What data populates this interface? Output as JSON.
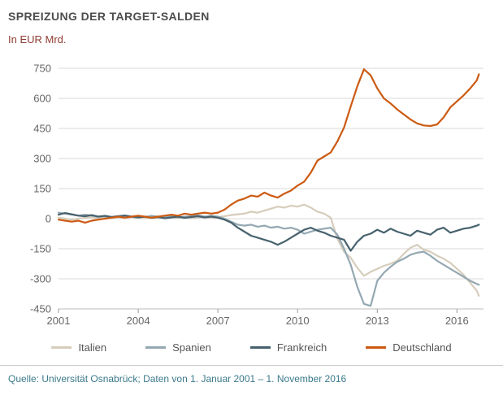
{
  "header": {
    "title": "SPREIZUNG DER TARGET-SALDEN",
    "subtitle": "In EUR Mrd."
  },
  "footer": {
    "source": "Quelle: Universität Osnabrück; Daten von 1. Januar 2001 – 1. November 2016"
  },
  "colors": {
    "title": "#4d4d4d",
    "subtitle": "#8e3b32",
    "axis_text": "#666666",
    "grid": "#d9d9d9",
    "axis_line": "#bbbbbb",
    "tick": "#999999",
    "source": "#3b7a8b",
    "background": "#ffffff"
  },
  "chart_data": {
    "type": "line",
    "title": "SPREIZUNG DER TARGET-SALDEN",
    "subtitle": "In EUR Mrd.",
    "xlabel": "",
    "ylabel": "EUR Mrd.",
    "xlim": [
      2001,
      2017
    ],
    "ylim": [
      -450,
      750
    ],
    "yticks": [
      -450,
      -300,
      -150,
      0,
      150,
      300,
      450,
      600,
      750
    ],
    "xticks": [
      2001,
      2004,
      2007,
      2010,
      2013,
      2016
    ],
    "grid": true,
    "legend_position": "bottom",
    "x": [
      2001,
      2001.25,
      2001.5,
      2001.75,
      2002,
      2002.25,
      2002.5,
      2002.75,
      2003,
      2003.25,
      2003.5,
      2003.75,
      2004,
      2004.25,
      2004.5,
      2004.75,
      2005,
      2005.25,
      2005.5,
      2005.75,
      2006,
      2006.25,
      2006.5,
      2006.75,
      2007,
      2007.25,
      2007.5,
      2007.75,
      2008,
      2008.25,
      2008.5,
      2008.75,
      2009,
      2009.25,
      2009.5,
      2009.75,
      2010,
      2010.25,
      2010.5,
      2010.75,
      2011,
      2011.25,
      2011.5,
      2011.75,
      2012,
      2012.25,
      2012.5,
      2012.75,
      2013,
      2013.25,
      2013.5,
      2013.75,
      2014,
      2014.25,
      2014.5,
      2014.75,
      2015,
      2015.25,
      2015.5,
      2015.75,
      2016,
      2016.25,
      2016.5,
      2016.75,
      2016.83
    ],
    "series": [
      {
        "name": "Italien",
        "color": "#d6cdbb",
        "values": [
          5,
          0,
          -5,
          0,
          5,
          8,
          3,
          6,
          2,
          6,
          4,
          8,
          5,
          2,
          6,
          3,
          5,
          8,
          4,
          7,
          3,
          6,
          9,
          5,
          8,
          12,
          18,
          22,
          25,
          35,
          30,
          40,
          50,
          60,
          55,
          65,
          60,
          70,
          55,
          35,
          25,
          5,
          -100,
          -165,
          -195,
          -245,
          -285,
          -265,
          -250,
          -235,
          -225,
          -210,
          -175,
          -145,
          -130,
          -155,
          -165,
          -185,
          -200,
          -220,
          -250,
          -280,
          -320,
          -360,
          -385
        ]
      },
      {
        "name": "Spanien",
        "color": "#94a8b2",
        "values": [
          30,
          25,
          20,
          15,
          20,
          15,
          10,
          12,
          8,
          12,
          6,
          10,
          12,
          8,
          14,
          10,
          8,
          12,
          6,
          10,
          12,
          16,
          10,
          14,
          10,
          0,
          -15,
          -30,
          -35,
          -30,
          -40,
          -35,
          -45,
          -40,
          -50,
          -45,
          -55,
          -75,
          -65,
          -55,
          -50,
          -45,
          -80,
          -150,
          -230,
          -340,
          -425,
          -435,
          -310,
          -270,
          -240,
          -215,
          -200,
          -180,
          -170,
          -165,
          -185,
          -210,
          -230,
          -250,
          -270,
          -290,
          -310,
          -325,
          -330
        ]
      },
      {
        "name": "Frankreich",
        "color": "#47626e",
        "values": [
          20,
          28,
          22,
          15,
          12,
          18,
          10,
          14,
          8,
          12,
          16,
          10,
          6,
          10,
          4,
          8,
          2,
          6,
          10,
          4,
          8,
          12,
          6,
          10,
          5,
          -5,
          -20,
          -45,
          -65,
          -85,
          -95,
          -105,
          -115,
          -130,
          -115,
          -95,
          -75,
          -55,
          -45,
          -60,
          -70,
          -85,
          -95,
          -105,
          -160,
          -115,
          -85,
          -75,
          -55,
          -70,
          -50,
          -65,
          -75,
          -85,
          -60,
          -70,
          -80,
          -55,
          -45,
          -70,
          -60,
          -50,
          -45,
          -35,
          -30
        ]
      },
      {
        "name": "Deutschland",
        "color": "#cc5a12",
        "values": [
          -5,
          -10,
          -15,
          -10,
          -20,
          -10,
          -5,
          0,
          5,
          10,
          5,
          10,
          15,
          10,
          5,
          10,
          15,
          20,
          15,
          25,
          20,
          25,
          30,
          25,
          30,
          45,
          70,
          90,
          100,
          115,
          110,
          130,
          115,
          105,
          125,
          140,
          165,
          185,
          230,
          290,
          310,
          330,
          385,
          455,
          560,
          660,
          745,
          715,
          650,
          600,
          575,
          545,
          520,
          495,
          475,
          465,
          462,
          470,
          505,
          555,
          585,
          615,
          650,
          690,
          720
        ]
      }
    ]
  }
}
